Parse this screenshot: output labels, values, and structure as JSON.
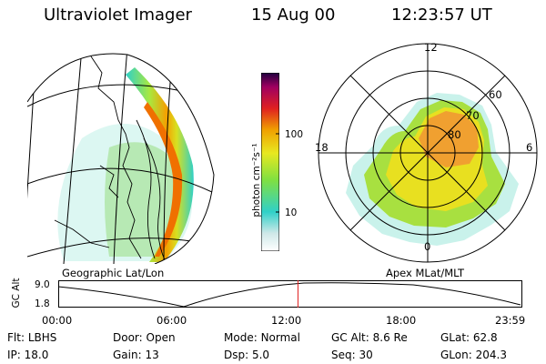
{
  "header": {
    "title": "Ultraviolet Imager",
    "date": "15 Aug 00",
    "time": "12:23:57 UT"
  },
  "colorbar": {
    "unit_label": "photon cm⁻²s⁻¹",
    "ticks": [
      "100",
      "10"
    ]
  },
  "geo_panel": {
    "caption": "Geographic Lat/Lon"
  },
  "polar_panel": {
    "caption": "Apex MLat/MLT",
    "mlt_labels": {
      "top": "12",
      "left": "18",
      "right": "6",
      "bottom": "0"
    },
    "lat_labels": [
      "60",
      "70",
      "80"
    ]
  },
  "altitude_plot": {
    "axis_title": "GC Alt",
    "y_ticks": [
      "9.0",
      "1.8"
    ],
    "x_ticks": [
      "00:00",
      "06:00",
      "12:00",
      "18:00",
      "23:59"
    ],
    "current_time_marker_hours": 12.4
  },
  "info": {
    "row1": {
      "flt_label": "Flt:",
      "flt_value": "LBHS",
      "door_label": "Door:",
      "door_value": "Open",
      "mode_label": "Mode:",
      "mode_value": "Normal",
      "gcalt_label": "GC Alt:",
      "gcalt_value": "8.6 Re",
      "glat_label": "GLat:",
      "glat_value": "62.8"
    },
    "row2": {
      "ip_label": "IP:",
      "ip_value": "18.0",
      "gain_label": "Gain:",
      "gain_value": "13",
      "dsp_label": "Dsp:",
      "dsp_value": "5.0",
      "seq_label": "Seq:",
      "seq_value": "30",
      "glon_label": "GLon:",
      "glon_value": "204.3"
    }
  },
  "colors": {
    "marker": "#e02020",
    "grid": "#000000"
  }
}
